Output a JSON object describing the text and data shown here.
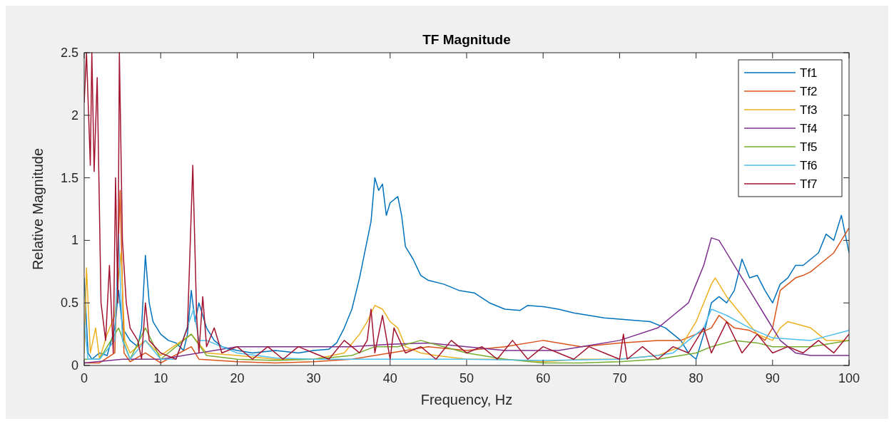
{
  "chart_data": {
    "type": "line",
    "title": "TF Magnitude",
    "xlabel": "Frequency, Hz",
    "ylabel": "Relative Magnitude",
    "xlim": [
      0,
      100
    ],
    "xticks": [
      0,
      10,
      20,
      30,
      40,
      50,
      60,
      70,
      80,
      90,
      100
    ],
    "ylim": [
      0,
      2.5
    ],
    "yticks": [
      0,
      0.5,
      1,
      1.5,
      2,
      2.5
    ],
    "grid": false,
    "legend": "top right",
    "series": [
      {
        "name": "Tf1",
        "color": "#0072bd",
        "x": [
          0,
          0.5,
          1,
          2,
          3,
          4,
          4.5,
          5,
          6,
          7,
          7.5,
          8,
          8.5,
          9,
          10,
          11,
          12,
          13,
          13.5,
          14,
          14.5,
          15,
          16,
          17,
          18,
          20,
          22,
          25,
          28,
          30,
          32,
          33,
          34,
          35,
          36,
          37,
          37.5,
          38,
          38.5,
          39,
          39.5,
          40,
          41,
          41.5,
          42,
          43,
          44,
          45,
          47,
          49,
          51,
          53,
          55,
          57,
          58,
          60,
          62,
          64,
          66,
          68,
          70,
          72,
          74,
          76,
          77,
          78,
          79,
          80,
          81,
          82,
          83,
          84,
          85,
          86,
          87,
          88,
          89,
          90,
          91,
          92,
          93,
          94,
          95,
          96,
          97,
          98,
          99,
          100
        ],
        "values": [
          0.7,
          0.1,
          0.05,
          0.1,
          0.08,
          0.3,
          0.6,
          0.3,
          0.2,
          0.15,
          0.3,
          0.88,
          0.5,
          0.35,
          0.25,
          0.2,
          0.18,
          0.12,
          0.25,
          0.6,
          0.35,
          0.5,
          0.3,
          0.2,
          0.15,
          0.12,
          0.1,
          0.12,
          0.1,
          0.12,
          0.13,
          0.18,
          0.3,
          0.45,
          0.7,
          1.0,
          1.15,
          1.5,
          1.4,
          1.45,
          1.2,
          1.3,
          1.35,
          1.2,
          0.95,
          0.85,
          0.72,
          0.68,
          0.65,
          0.6,
          0.58,
          0.5,
          0.45,
          0.44,
          0.48,
          0.47,
          0.45,
          0.42,
          0.4,
          0.38,
          0.37,
          0.36,
          0.35,
          0.3,
          0.25,
          0.2,
          0.1,
          0.05,
          0.25,
          0.5,
          0.55,
          0.5,
          0.6,
          0.85,
          0.7,
          0.72,
          0.6,
          0.5,
          0.65,
          0.7,
          0.8,
          0.8,
          0.85,
          0.9,
          1.05,
          1.0,
          1.2,
          0.9
        ]
      },
      {
        "name": "Tf2",
        "color": "#d95319",
        "x": [
          0,
          2,
          4,
          4.7,
          5.2,
          6,
          8,
          10,
          14,
          15,
          20,
          25,
          30,
          35,
          40,
          45,
          50,
          55,
          60,
          65,
          70,
          75,
          78,
          80,
          82,
          83,
          85,
          87,
          88,
          89,
          90,
          91,
          92,
          93,
          94,
          95,
          96,
          97,
          98,
          99,
          100
        ],
        "values": [
          0.02,
          0.02,
          0.1,
          1.4,
          0.1,
          0.03,
          0.1,
          0.02,
          0.15,
          0.05,
          0.03,
          0.02,
          0.03,
          0.05,
          0.1,
          0.15,
          0.12,
          0.15,
          0.2,
          0.15,
          0.18,
          0.2,
          0.2,
          0.25,
          0.3,
          0.4,
          0.3,
          0.28,
          0.25,
          0.2,
          0.3,
          0.6,
          0.65,
          0.7,
          0.72,
          0.75,
          0.8,
          0.85,
          0.9,
          1.0,
          1.1
        ]
      },
      {
        "name": "Tf3",
        "color": "#edb120",
        "x": [
          0,
          0.3,
          0.8,
          1.5,
          2,
          3,
          4,
          4.8,
          5.3,
          6,
          8,
          10,
          14,
          16,
          20,
          25,
          30,
          34,
          36,
          37,
          38,
          39,
          40,
          41,
          42,
          44,
          46,
          50,
          55,
          60,
          65,
          70,
          75,
          78,
          80,
          81,
          82,
          82.5,
          84,
          86,
          88,
          90,
          91,
          92,
          95,
          97,
          100
        ],
        "values": [
          0.1,
          0.78,
          0.1,
          0.3,
          0.05,
          0.25,
          0.4,
          0.9,
          0.2,
          0.1,
          0.2,
          0.08,
          0.25,
          0.1,
          0.08,
          0.05,
          0.05,
          0.1,
          0.25,
          0.35,
          0.48,
          0.45,
          0.35,
          0.3,
          0.15,
          0.1,
          0.08,
          0.05,
          0.05,
          0.03,
          0.05,
          0.05,
          0.08,
          0.15,
          0.35,
          0.5,
          0.65,
          0.7,
          0.55,
          0.4,
          0.25,
          0.2,
          0.3,
          0.35,
          0.3,
          0.2,
          0.2
        ]
      },
      {
        "name": "Tf4",
        "color": "#7e2f8e",
        "x": [
          0,
          5,
          10,
          15,
          20,
          25,
          30,
          35,
          40,
          45,
          50,
          55,
          60,
          62,
          65,
          70,
          75,
          77,
          79,
          80,
          81,
          82,
          83,
          85,
          87,
          89,
          91,
          93,
          95,
          100
        ],
        "values": [
          0.02,
          0.05,
          0.05,
          0.1,
          0.15,
          0.15,
          0.15,
          0.15,
          0.17,
          0.18,
          0.15,
          0.12,
          0.12,
          0.12,
          0.15,
          0.2,
          0.3,
          0.4,
          0.5,
          0.65,
          0.8,
          1.02,
          1.0,
          0.8,
          0.6,
          0.4,
          0.2,
          0.1,
          0.08,
          0.08
        ]
      },
      {
        "name": "Tf5",
        "color": "#77ac30",
        "x": [
          0,
          2,
          4.5,
          6,
          8,
          10,
          14,
          16,
          20,
          25,
          30,
          35,
          38,
          41,
          44,
          47,
          50,
          55,
          60,
          65,
          70,
          75,
          78,
          80,
          82,
          85,
          88,
          90,
          95,
          100
        ],
        "values": [
          0.05,
          0.05,
          0.3,
          0.05,
          0.3,
          0.05,
          0.25,
          0.08,
          0.05,
          0.04,
          0.05,
          0.08,
          0.15,
          0.15,
          0.2,
          0.15,
          0.1,
          0.05,
          0.02,
          0.02,
          0.03,
          0.05,
          0.08,
          0.1,
          0.15,
          0.2,
          0.18,
          0.15,
          0.15,
          0.2
        ]
      },
      {
        "name": "Tf6",
        "color": "#4dbeee",
        "x": [
          0,
          0.5,
          2,
          4,
          4.5,
          5,
          6,
          8,
          10,
          12,
          14.3,
          15,
          16,
          20,
          25,
          30,
          40,
          50,
          60,
          70,
          75,
          77,
          79,
          81,
          82,
          84,
          87,
          90,
          95,
          100
        ],
        "values": [
          0.35,
          0.05,
          0.05,
          0.2,
          1.05,
          0.2,
          0.05,
          0.2,
          0.05,
          0.05,
          0.45,
          0.2,
          0.2,
          0.1,
          0.06,
          0.05,
          0.05,
          0.05,
          0.04,
          0.05,
          0.08,
          0.1,
          0.2,
          0.3,
          0.45,
          0.4,
          0.3,
          0.22,
          0.2,
          0.28
        ]
      },
      {
        "name": "Tf7",
        "color": "#a2142f",
        "x": [
          0,
          0.3,
          0.8,
          1.0,
          1.3,
          1.7,
          2.2,
          2.8,
          3.3,
          3.8,
          4.1,
          4.4,
          4.6,
          5,
          5.5,
          6,
          7,
          7.5,
          8,
          8.5,
          10,
          12,
          13.5,
          14.2,
          14.7,
          15,
          15.5,
          16,
          17,
          18,
          20,
          22,
          24,
          26,
          28,
          30,
          32,
          34,
          36,
          37,
          37.5,
          38,
          39,
          40,
          40.5,
          42,
          44,
          46,
          48,
          50,
          52,
          54,
          56,
          58,
          60,
          62,
          64,
          66,
          68,
          70,
          70.5,
          71,
          73,
          75,
          77,
          79,
          81,
          82,
          84,
          86,
          88,
          90,
          92,
          94,
          96,
          98,
          100
        ],
        "values": [
          2.1,
          2.5,
          1.6,
          2.5,
          1.55,
          2.3,
          0.5,
          0.2,
          0.8,
          0.1,
          1.5,
          0.5,
          2.5,
          1.0,
          0.5,
          0.3,
          0.2,
          0.05,
          0.5,
          0.2,
          0.1,
          0.05,
          0.3,
          1.6,
          0.4,
          0.1,
          0.55,
          0.15,
          0.3,
          0.1,
          0.15,
          0.05,
          0.15,
          0.05,
          0.15,
          0.1,
          0.05,
          0.2,
          0.1,
          0.2,
          0.45,
          0.1,
          0.4,
          0.05,
          0.3,
          0.1,
          0.15,
          0.05,
          0.2,
          0.1,
          0.15,
          0.05,
          0.2,
          0.05,
          0.15,
          0.1,
          0.05,
          0.15,
          0.1,
          0.05,
          0.25,
          0.05,
          0.15,
          0.05,
          0.15,
          0.1,
          0.3,
          0.1,
          0.35,
          0.1,
          0.25,
          0.1,
          0.15,
          0.1,
          0.2,
          0.1,
          0.25
        ]
      }
    ]
  }
}
